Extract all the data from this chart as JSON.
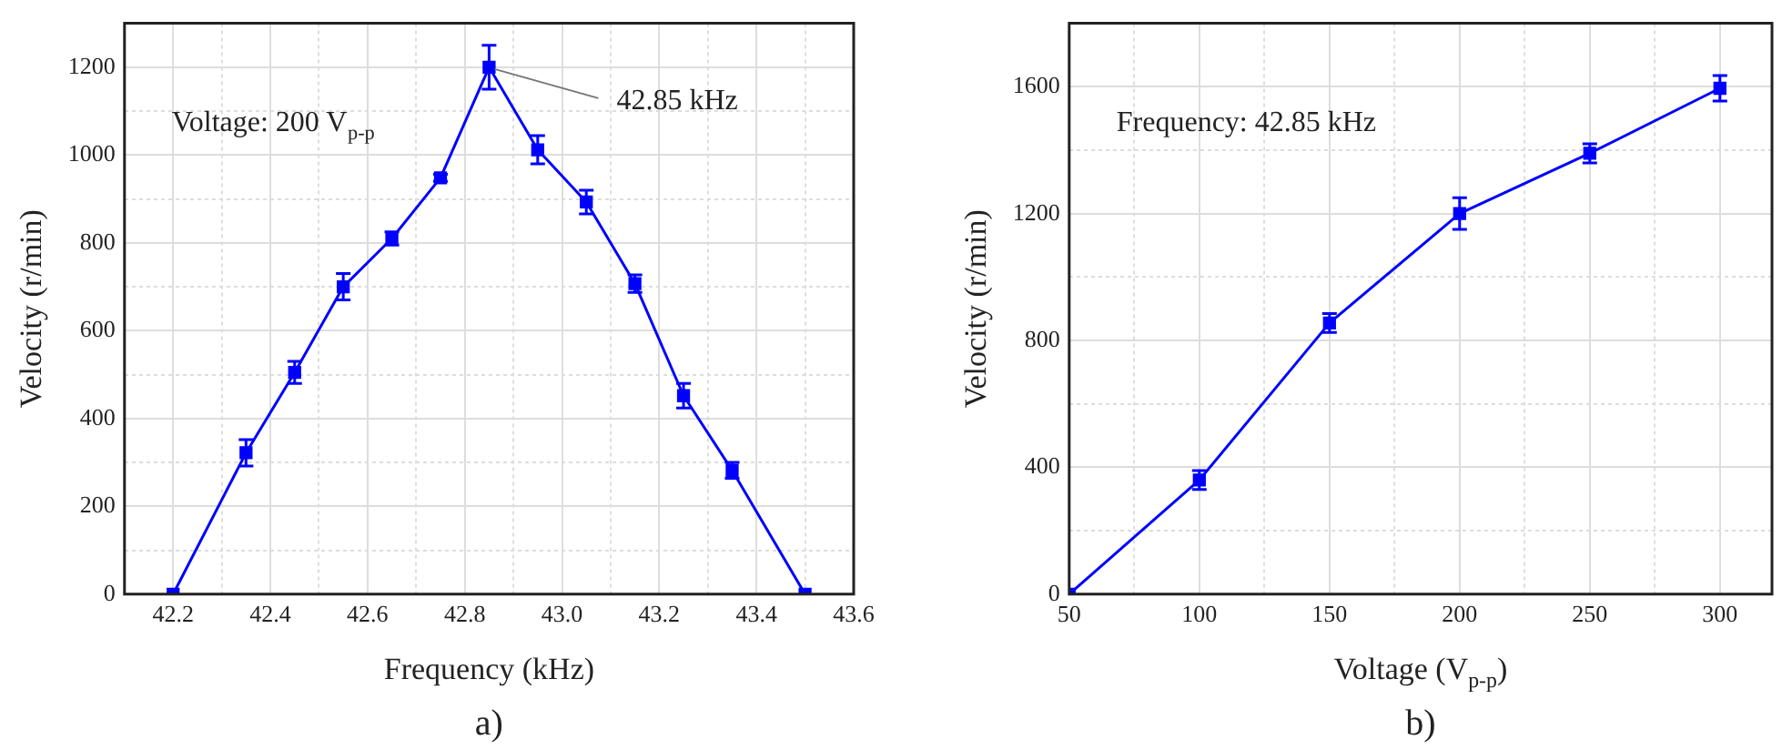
{
  "chart_data": [
    {
      "type": "line",
      "xlabel": "Frequency (kHz)",
      "ylabel": "Velocity (r/min)",
      "x": [
        42.2,
        42.35,
        42.45,
        42.55,
        42.65,
        42.75,
        42.85,
        42.95,
        43.05,
        43.15,
        43.25,
        43.35,
        43.5
      ],
      "series": [
        {
          "color": "#0000ff",
          "values": [
            0,
            322,
            505,
            700,
            810,
            948,
            1200,
            1012,
            893,
            707,
            452,
            282,
            0
          ],
          "errors": [
            null,
            30,
            25,
            30,
            15,
            8,
            50,
            32,
            27,
            20,
            28,
            18,
            null
          ]
        }
      ],
      "xlim": [
        42.1,
        43.6
      ],
      "xticks": [
        {
          "value": 42.1,
          "label": null
        },
        42.2,
        {
          "value": 42.3,
          "label": null
        },
        42.4,
        {
          "value": 42.5,
          "label": null
        },
        42.6,
        {
          "value": 42.7,
          "label": null
        },
        42.8,
        {
          "value": 42.9,
          "label": null
        },
        {
          "value": 43,
          "label": "43.0"
        },
        {
          "value": 43.1,
          "label": null
        },
        43.2,
        {
          "value": 43.3,
          "label": null
        },
        43.4,
        {
          "value": 43.5,
          "label": null
        },
        43.6
      ],
      "ylim": [
        0,
        1300
      ],
      "yticks": [
        0,
        {
          "value": 100,
          "label": null
        },
        200,
        {
          "value": 300,
          "label": null
        },
        400,
        {
          "value": 500,
          "label": null
        },
        600,
        {
          "value": 700,
          "label": null
        },
        800,
        {
          "value": 900,
          "label": null
        },
        1000,
        {
          "value": 1100,
          "label": null
        },
        1200
      ],
      "grid": true,
      "marker": "square",
      "line_style": "solid",
      "annotations": [
        "Voltage: 200 V$_{p-p}$",
        {
          "text": "42.85 kHz",
          "x": 42.85,
          "y": 1200
        },
        "a)"
      ]
    },
    {
      "type": "line",
      "xlabel": "Voltage (V$_{p-p}$)",
      "ylabel": "Velocity (r/min)",
      "x": [
        50,
        100,
        150,
        200,
        250,
        300
      ],
      "series": [
        {
          "color": "#0000ff",
          "values": [
            0,
            360,
            855,
            1200,
            1390,
            1595
          ],
          "errors": [
            null,
            30,
            30,
            50,
            30,
            40
          ]
        }
      ],
      "xlim": [
        50,
        320
      ],
      "xticks": [
        50,
        {
          "value": 75,
          "label": null
        },
        100,
        {
          "value": 125,
          "label": null
        },
        150,
        {
          "value": 175,
          "label": null
        },
        200,
        {
          "value": 225,
          "label": null
        },
        250,
        {
          "value": 275,
          "label": null
        },
        300
      ],
      "ylim": [
        0,
        1800
      ],
      "yticks": [
        0,
        {
          "value": 200,
          "label": null
        },
        400,
        {
          "value": 600,
          "label": null
        },
        800,
        {
          "value": 1000,
          "label": null
        },
        1200,
        {
          "value": 1400,
          "label": null
        },
        1600
      ],
      "grid": true,
      "marker": "square",
      "line_style": "solid",
      "annotations": [
        "Frequency: 42.85 kHz",
        "b)"
      ]
    }
  ]
}
